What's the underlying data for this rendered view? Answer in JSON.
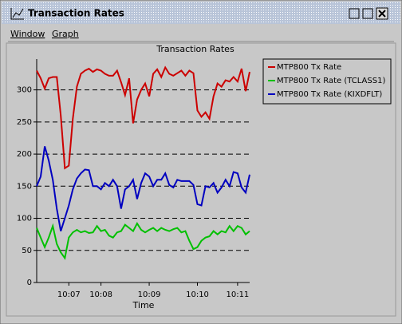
{
  "window": {
    "title": "Transaction Rates",
    "menu": [
      "Window",
      "Graph"
    ]
  },
  "chart_data": {
    "type": "line",
    "title": "Transaction Rates",
    "x_label": "Time",
    "categories": [
      null,
      null,
      null,
      null,
      null,
      null,
      null,
      null,
      "10:07",
      null,
      null,
      null,
      null,
      null,
      null,
      null,
      "10:08",
      null,
      null,
      null,
      null,
      null,
      null,
      null,
      null,
      null,
      null,
      null,
      "10:09",
      null,
      null,
      null,
      null,
      null,
      null,
      null,
      null,
      null,
      null,
      null,
      "10:10",
      null,
      null,
      null,
      null,
      null,
      null,
      null,
      null,
      null,
      "10:11",
      null,
      null,
      null
    ],
    "series": [
      {
        "name": "MTP800 Tx Rate",
        "color": "#cc0000",
        "values": [
          330,
          318,
          302,
          318,
          320,
          320,
          260,
          178,
          182,
          255,
          305,
          325,
          330,
          333,
          328,
          332,
          330,
          325,
          322,
          322,
          330,
          312,
          292,
          318,
          248,
          285,
          300,
          310,
          290,
          325,
          332,
          320,
          335,
          325,
          322,
          326,
          330,
          322,
          330,
          326,
          268,
          258,
          265,
          255,
          290,
          310,
          305,
          315,
          313,
          320,
          313,
          333,
          298,
          328
        ]
      },
      {
        "name": "MTP800 Tx Rate (TCLASS1)",
        "color": "#00c000",
        "values": [
          85,
          70,
          55,
          70,
          88,
          60,
          47,
          38,
          70,
          78,
          82,
          78,
          80,
          77,
          78,
          88,
          80,
          82,
          73,
          70,
          78,
          80,
          90,
          85,
          80,
          92,
          82,
          78,
          82,
          85,
          80,
          85,
          82,
          80,
          83,
          85,
          78,
          80,
          65,
          52,
          55,
          65,
          70,
          72,
          80,
          75,
          80,
          78,
          88,
          80,
          88,
          85,
          75,
          80
        ]
      },
      {
        "name": "MTP800 Tx Rate (KIXDFLT)",
        "color": "#0000c0",
        "values": [
          150,
          165,
          212,
          190,
          160,
          115,
          80,
          100,
          120,
          145,
          162,
          170,
          176,
          175,
          150,
          150,
          145,
          155,
          150,
          160,
          150,
          115,
          145,
          150,
          160,
          130,
          155,
          170,
          165,
          150,
          160,
          160,
          170,
          152,
          148,
          160,
          158,
          158,
          158,
          152,
          122,
          120,
          150,
          148,
          155,
          140,
          148,
          160,
          150,
          172,
          170,
          148,
          140,
          168
        ]
      }
    ],
    "ylim": [
      0,
      348
    ],
    "yticks": [
      0,
      50,
      100,
      150,
      200,
      250,
      300
    ],
    "grid": true,
    "legend": "right"
  }
}
